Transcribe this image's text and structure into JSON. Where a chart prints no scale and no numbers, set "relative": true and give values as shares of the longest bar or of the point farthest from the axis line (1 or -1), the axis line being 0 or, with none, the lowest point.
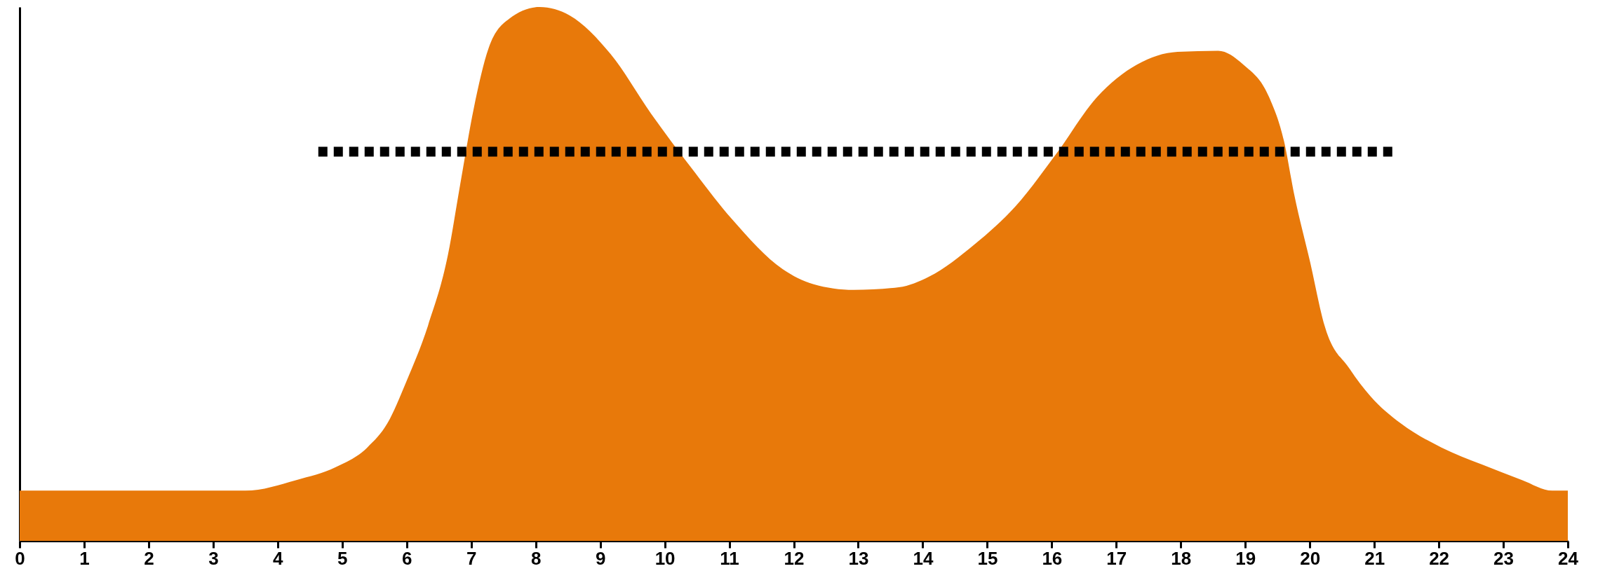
{
  "chart_data": {
    "type": "area",
    "relative": true,
    "xlim": [
      0,
      24
    ],
    "xticks": [
      0,
      1,
      2,
      3,
      4,
      5,
      6,
      7,
      8,
      9,
      10,
      11,
      12,
      13,
      14,
      15,
      16,
      17,
      18,
      19,
      20,
      21,
      22,
      23,
      24
    ],
    "tick_labels": "x",
    "grid": false,
    "series": [
      {
        "color": "#e8790a",
        "x": [
          0,
          3.5,
          4.29,
          4.9,
          5.39,
          5.7,
          6.0,
          6.33,
          6.64,
          6.83,
          7.04,
          7.27,
          7.59,
          8.06,
          8.53,
          9.16,
          9.79,
          10.41,
          11.04,
          11.83,
          12.3,
          12.93,
          13.63,
          14.1,
          14.81,
          15.44,
          16.07,
          16.7,
          17.32,
          17.95,
          18.58,
          18.97,
          19.37,
          19.6,
          19.76,
          20.0,
          20.23,
          20.62,
          20.94,
          21.41,
          22.04,
          22.67,
          23.29,
          23.76,
          24
        ],
        "values": [
          0.094,
          0.094,
          0.114,
          0.138,
          0.175,
          0.22,
          0.3,
          0.403,
          0.536,
          0.668,
          0.81,
          0.923,
          0.978,
          1.0,
          0.984,
          0.912,
          0.8,
          0.699,
          0.603,
          0.509,
          0.481,
          0.47,
          0.475,
          0.495,
          0.556,
          0.627,
          0.725,
          0.831,
          0.892,
          0.916,
          0.918,
          0.892,
          0.831,
          0.749,
          0.648,
          0.525,
          0.403,
          0.322,
          0.271,
          0.22,
          0.175,
          0.143,
          0.114,
          0.094,
          0.094
        ]
      },
      {
        "type": "line",
        "color": "#000000",
        "line_style": "dotted",
        "x": [
          4.63,
          21.33
        ],
        "values": [
          0.729,
          0.729
        ]
      }
    ]
  }
}
